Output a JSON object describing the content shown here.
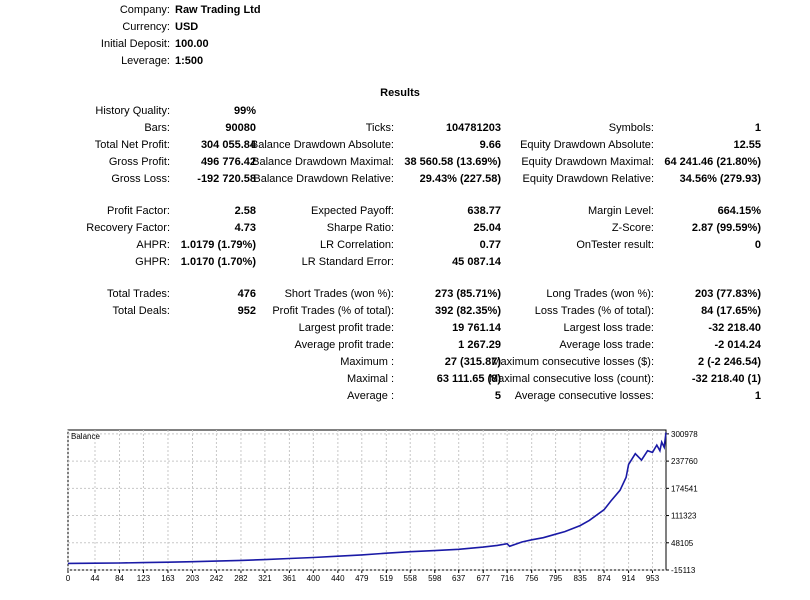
{
  "header": {
    "company_label": "Company:",
    "company_value": "Raw Trading Ltd",
    "currency_label": "Currency:",
    "currency_value": "USD",
    "deposit_label": "Initial Deposit:",
    "deposit_value": "100.00",
    "leverage_label": "Leverage:",
    "leverage_value": "1:500"
  },
  "results_title": "Results",
  "rows": [
    [
      "History Quality:",
      "99%",
      "",
      "",
      "",
      ""
    ],
    [
      "Bars:",
      "90080",
      "Ticks:",
      "104781203",
      "Symbols:",
      "1"
    ],
    [
      "Total Net Profit:",
      "304 055.84",
      "Balance Drawdown Absolute:",
      "9.66",
      "Equity Drawdown Absolute:",
      "12.55"
    ],
    [
      "Gross Profit:",
      "496 776.42",
      "Balance Drawdown Maximal:",
      "38 560.58 (13.69%)",
      "Equity Drawdown Maximal:",
      "64 241.46 (21.80%)"
    ],
    [
      "Gross Loss:",
      "-192 720.58",
      "Balance Drawdown Relative:",
      "29.43% (227.58)",
      "Equity Drawdown Relative:",
      "34.56% (279.93)"
    ],
    [
      "Profit Factor:",
      "2.58",
      "Expected Payoff:",
      "638.77",
      "Margin Level:",
      "664.15%"
    ],
    [
      "Recovery Factor:",
      "4.73",
      "Sharpe Ratio:",
      "25.04",
      "Z-Score:",
      "2.87 (99.59%)"
    ],
    [
      "AHPR:",
      "1.0179 (1.79%)",
      "LR Correlation:",
      "0.77",
      "OnTester result:",
      "0"
    ],
    [
      "GHPR:",
      "1.0170 (1.70%)",
      "LR Standard Error:",
      "45 087.14",
      "",
      ""
    ],
    [
      "Total Trades:",
      "476",
      "Short Trades (won %):",
      "273 (85.71%)",
      "Long Trades (won %):",
      "203 (77.83%)"
    ],
    [
      "Total Deals:",
      "952",
      "Profit Trades (% of total):",
      "392 (82.35%)",
      "Loss Trades (% of total):",
      "84 (17.65%)"
    ],
    [
      "",
      "",
      "Largest profit trade:",
      "19 761.14",
      "Largest loss trade:",
      "-32 218.40"
    ],
    [
      "",
      "",
      "Average profit trade:",
      "1 267.29",
      "Average loss trade:",
      "-2 014.24"
    ],
    [
      "",
      "",
      "Maximum :",
      "27 (315.87)",
      "Maximum consecutive losses ($):",
      "2 (-2 246.54)"
    ],
    [
      "",
      "",
      "Maximal :",
      "63 111.65 (8)",
      "Maximal consecutive loss (count):",
      "-32 218.40 (1)"
    ],
    [
      "",
      "",
      "Average :",
      "5",
      "Average consecutive losses:",
      "1"
    ]
  ],
  "chart_data": {
    "type": "line",
    "title": "Balance",
    "xlabel": "",
    "ylabel": "",
    "x_ticks": [
      0,
      44,
      84,
      123,
      163,
      203,
      242,
      282,
      321,
      361,
      400,
      440,
      479,
      519,
      558,
      598,
      637,
      677,
      716,
      756,
      795,
      835,
      874,
      914,
      953
    ],
    "y_ticks": [
      300978,
      237760,
      174541,
      111323,
      48105,
      -15113
    ],
    "xlim": [
      0,
      975
    ],
    "ylim": [
      -15113,
      310000
    ],
    "grid": true,
    "color": "#1a1aa6",
    "series": [
      {
        "x": [
          0,
          44,
          84,
          123,
          163,
          203,
          242,
          282,
          321,
          361,
          400,
          440,
          479,
          519,
          558,
          598,
          637,
          677,
          700,
          716,
          720,
          740,
          756,
          775,
          795,
          810,
          835,
          850,
          874,
          885,
          900,
          910,
          914,
          925,
          935,
          945,
          953,
          960,
          965,
          968,
          972,
          975
        ],
        "y": [
          100,
          600,
          1200,
          2000,
          3000,
          4200,
          5600,
          7200,
          9000,
          11500,
          14000,
          17000,
          20000,
          24000,
          27500,
          30000,
          33000,
          38000,
          42000,
          46000,
          40000,
          50000,
          55000,
          60000,
          68000,
          74000,
          88000,
          100000,
          125000,
          145000,
          170000,
          200000,
          230000,
          255000,
          240000,
          262000,
          258000,
          275000,
          262000,
          282000,
          270000,
          304155
        ]
      }
    ]
  }
}
